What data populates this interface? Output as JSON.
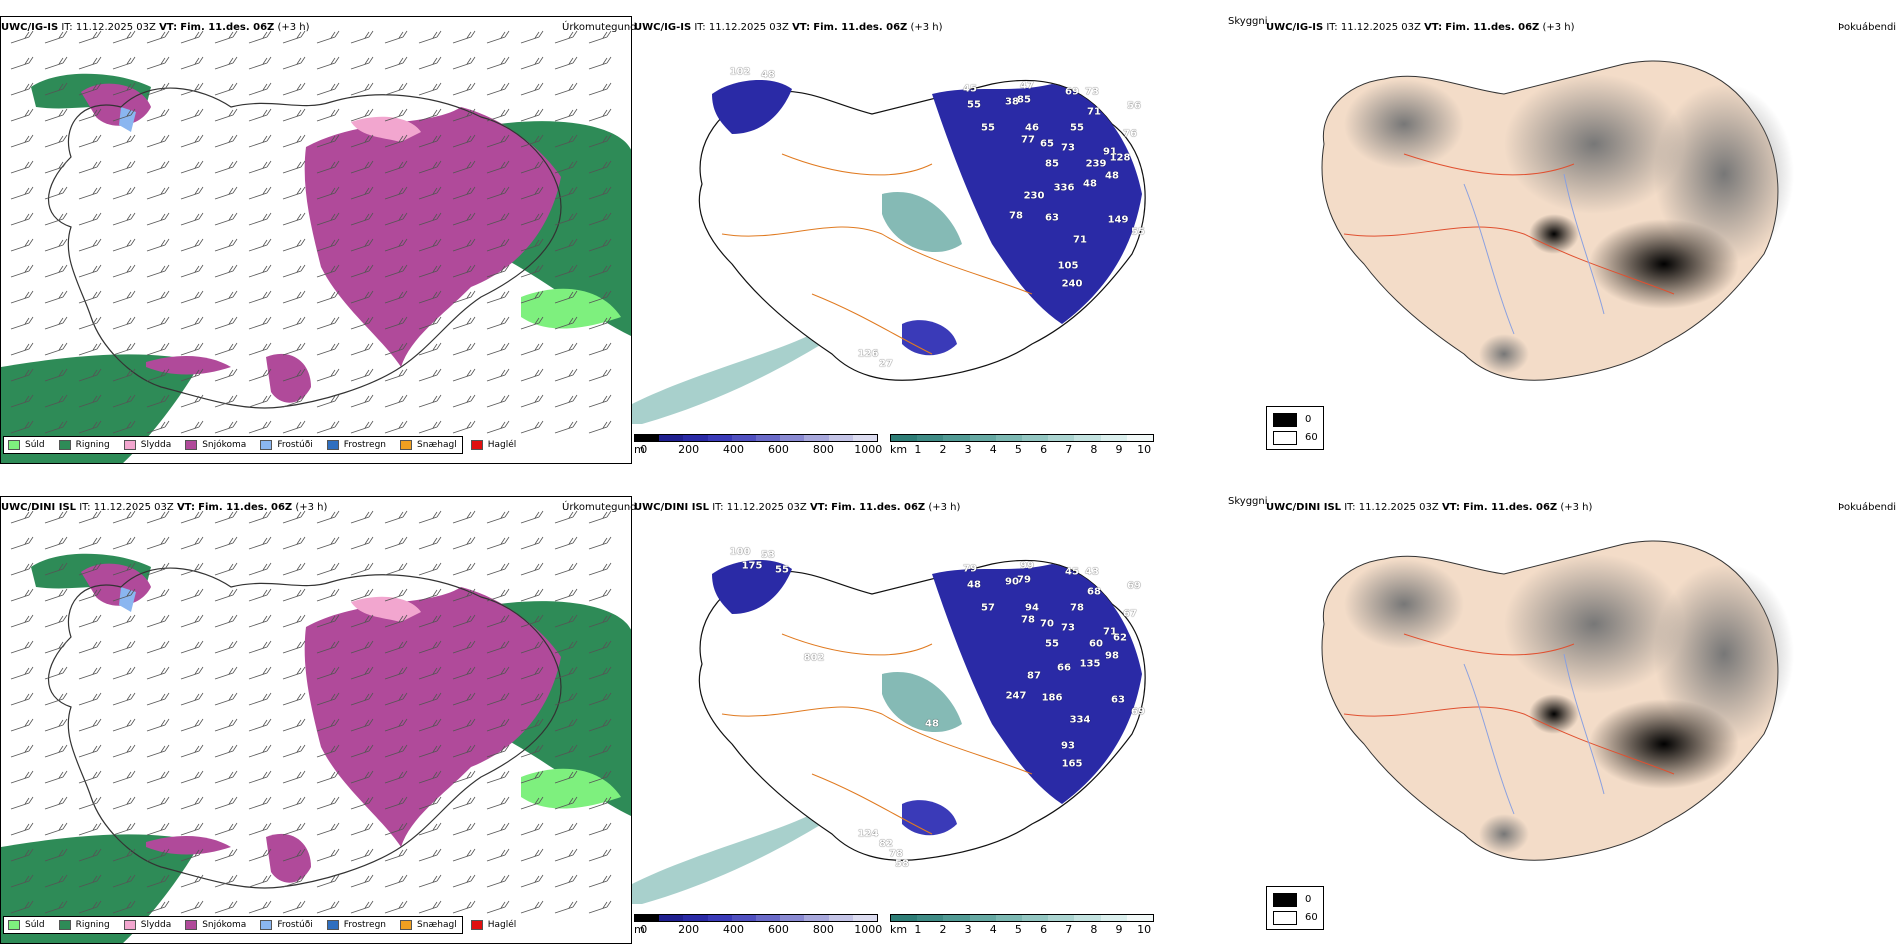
{
  "rows": [
    {
      "model": "UWC/IG-IS",
      "it_label": "IT:",
      "it_value": "11.12.2025 03Z",
      "vt_label": "VT:",
      "vt_value": "Fim. 11.des. 06Z",
      "lead": "(+3 h)",
      "precip_title": "Úrkomutegund",
      "sky_title": "Skyggni",
      "fog_title": "Þokuábendi",
      "vis_numbers": [
        "102",
        "48",
        "45",
        "47",
        "69",
        "73",
        "55",
        "38",
        "85",
        "56",
        "71",
        "55",
        "46",
        "65",
        "55",
        "73",
        "91",
        "76",
        "239",
        "128",
        "85",
        "48",
        "336",
        "230",
        "48",
        "78",
        "63",
        "149",
        "71",
        "55",
        "105",
        "77",
        "240",
        "126",
        "27"
      ]
    },
    {
      "model": "UWC/DINI ISL",
      "it_label": "IT:",
      "it_value": "11.12.2025 03Z",
      "vt_label": "VT:",
      "vt_value": "Fim. 11.des. 06Z",
      "lead": "(+3 h)",
      "precip_title": "Úrkomutegund",
      "sky_title": "Skyggni",
      "fog_title": "Þokuábendi",
      "vis_numbers": [
        "100",
        "53",
        "79",
        "99",
        "45",
        "43",
        "48",
        "90",
        "79",
        "69",
        "68",
        "78",
        "94",
        "70",
        "57",
        "73",
        "71",
        "67",
        "60",
        "62",
        "55",
        "98",
        "66",
        "87",
        "135",
        "247",
        "186",
        "63",
        "334",
        "69",
        "93",
        "78",
        "165",
        "124",
        "82",
        "78",
        "58",
        "48",
        "802",
        "175",
        "55"
      ]
    }
  ],
  "precip_legend": [
    {
      "label": "Súld",
      "color": "#7ef07e"
    },
    {
      "label": "Rigning",
      "color": "#2e8b57"
    },
    {
      "label": "Slydda",
      "color": "#f2a6cf"
    },
    {
      "label": "Snjókoma",
      "color": "#b04a9a"
    },
    {
      "label": "Frostúði",
      "color": "#8ab6f0"
    },
    {
      "label": "Frostregn",
      "color": "#2f6fbf"
    },
    {
      "label": "Snæhagl",
      "color": "#f0a020"
    },
    {
      "label": "Haglél",
      "color": "#e01010"
    }
  ],
  "height_bar": {
    "unit": "m",
    "ticks": [
      "0",
      "200",
      "400",
      "600",
      "800",
      "1000"
    ],
    "colors": [
      "#000000",
      "#1f1f8f",
      "#2a2aa6",
      "#3a3ab8",
      "#5050c0",
      "#6a6ac8",
      "#8a8ad2",
      "#a8a8dc",
      "#c4c4e6",
      "#dcdcf0"
    ]
  },
  "vis_bar": {
    "unit": "km",
    "ticks": [
      "1",
      "2",
      "3",
      "4",
      "5",
      "6",
      "7",
      "8",
      "9",
      "10"
    ],
    "colors": [
      "#2e7d76",
      "#3f8b85",
      "#519a94",
      "#66a9a3",
      "#7cb8b2",
      "#93c6c1",
      "#abd4d0",
      "#c3e2df",
      "#dbefed",
      "#f2f9f8"
    ]
  },
  "fog_legend": [
    {
      "label": "0",
      "color": "#000000"
    },
    {
      "label": "60",
      "color": "#ffffff"
    }
  ]
}
